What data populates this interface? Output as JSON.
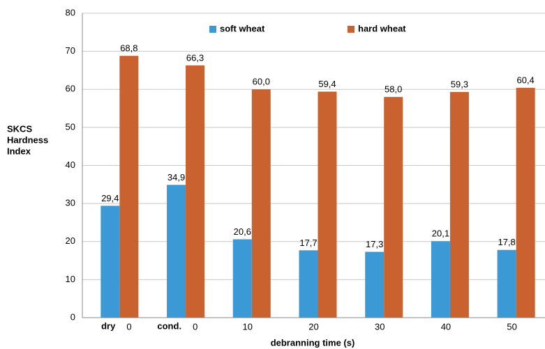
{
  "chart_data": {
    "type": "bar",
    "y_label": [
      "SKCS",
      "Hardness",
      "Index"
    ],
    "x_label": "debranning time (s)",
    "categories": [
      "0",
      "0",
      "10",
      "20",
      "30",
      "40",
      "50"
    ],
    "category_prefixes": [
      "dry",
      "cond."
    ],
    "series": [
      {
        "name": "soft wheat",
        "color": "#3b9ad6",
        "values": [
          29.4,
          34.9,
          20.6,
          17.7,
          17.3,
          20.1,
          17.8
        ],
        "value_labels": [
          "29,4",
          "34,9",
          "20,6",
          "17,7",
          "17,3",
          "20,1",
          "17,8"
        ]
      },
      {
        "name": "hard wheat",
        "color": "#c9622f",
        "values": [
          68.8,
          66.3,
          60.0,
          59.4,
          58.0,
          59.3,
          60.4
        ],
        "value_labels": [
          "68,8",
          "66,3",
          "60,0",
          "59,4",
          "58,0",
          "59,3",
          "60,4"
        ]
      }
    ],
    "ylim": [
      0,
      80
    ],
    "yticks": [
      0,
      10,
      20,
      30,
      40,
      50,
      60,
      70,
      80
    ],
    "grid": true,
    "legend": "top"
  }
}
